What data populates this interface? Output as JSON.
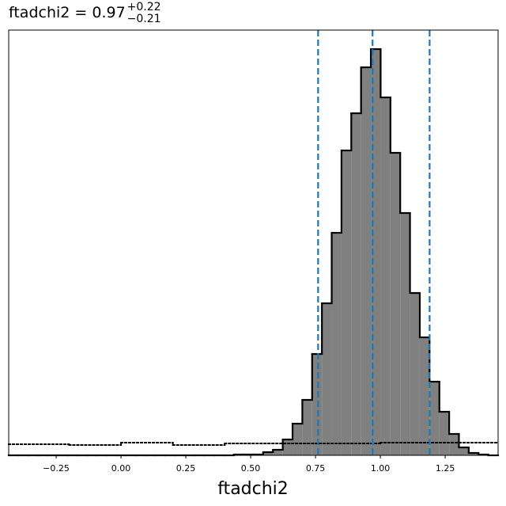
{
  "chart_data": {
    "type": "histogram",
    "title": "ftadchi2 = 0.97",
    "title_upper": "+0.22",
    "title_lower": "−0.21",
    "xlabel": "ftadchi2",
    "bins": [
      -0.433,
      -0.3953,
      -0.3575,
      -0.3198,
      -0.282,
      -0.2443,
      -0.2066,
      -0.1688,
      -0.1311,
      -0.0933,
      -0.0556,
      -0.0179,
      0.0199,
      0.0576,
      0.0954,
      0.1331,
      0.1708,
      0.2086,
      0.2463,
      0.2841,
      0.3218,
      0.3595,
      0.3973,
      0.435,
      0.4728,
      0.5105,
      0.5482,
      0.586,
      0.6237,
      0.6615,
      0.6992,
      0.7369,
      0.7747,
      0.8124,
      0.8502,
      0.8879,
      0.9256,
      0.9634,
      1.0011,
      1.0389,
      1.0766,
      1.1143,
      1.1521,
      1.1898,
      1.2276,
      1.2653,
      1.303,
      1.3408,
      1.3785,
      1.4163,
      1.454
    ],
    "values": [
      0,
      0,
      0,
      0,
      0,
      0,
      0,
      0,
      0,
      0,
      0,
      0,
      0,
      0,
      0,
      0,
      0,
      0,
      0,
      0,
      0,
      0,
      0,
      1,
      1,
      1,
      4,
      7,
      20,
      40,
      70,
      128,
      192,
      281,
      385,
      432,
      490,
      513,
      452,
      382,
      306,
      205,
      149,
      93,
      55,
      27,
      10,
      3,
      1,
      0
    ],
    "color": "#808080",
    "edge_color": "#000000",
    "prior": {
      "bins": [
        -0.433,
        -0.2,
        0.0,
        0.2,
        0.4,
        1.0,
        1.454
      ],
      "values": [
        14,
        13,
        16,
        13,
        15,
        16
      ],
      "color": "#000000"
    },
    "quantiles": [
      0.76,
      0.97,
      1.19
    ],
    "quantile_color": "#1f77b4",
    "xlim": [
      -0.433,
      1.454
    ],
    "ylim": [
      0,
      537
    ],
    "xticks": [
      {
        "value": -0.25,
        "label": "−0.25"
      },
      {
        "value": 0.0,
        "label": "0.00"
      },
      {
        "value": 0.25,
        "label": "0.25"
      },
      {
        "value": 0.5,
        "label": "0.50"
      },
      {
        "value": 0.75,
        "label": "0.75"
      },
      {
        "value": 1.0,
        "label": "1.00"
      },
      {
        "value": 1.25,
        "label": "1.25"
      }
    ]
  }
}
